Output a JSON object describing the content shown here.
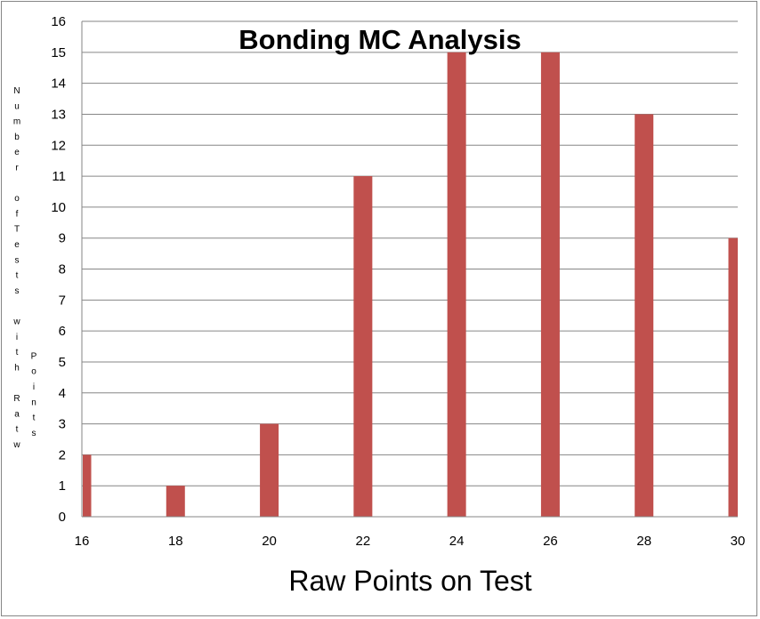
{
  "chart_data": {
    "type": "bar",
    "title": "Bonding MC Analysis",
    "xlabel": "Raw Points on Test",
    "ylabel_columns": [
      [
        "N",
        "u",
        "m",
        "b",
        "e",
        "r",
        "",
        "o",
        "f",
        "T",
        "e",
        "s",
        "t",
        "s",
        "",
        "w",
        "i",
        "t",
        "h",
        "",
        "R",
        "a",
        "t",
        "w"
      ],
      [
        "",
        "",
        "",
        "",
        "",
        "",
        "",
        "",
        "P",
        "o",
        "i",
        "n",
        "t",
        "s"
      ]
    ],
    "x": [
      16,
      18,
      20,
      22,
      24,
      26,
      28,
      30
    ],
    "values": [
      2,
      1,
      3,
      11,
      15,
      15,
      13,
      9
    ],
    "x_ticks": [
      "16",
      "18",
      "20",
      "22",
      "24",
      "26",
      "28",
      "30"
    ],
    "y_ticks": [
      "0",
      "1",
      "2",
      "3",
      "4",
      "5",
      "6",
      "7",
      "8",
      "9",
      "10",
      "11",
      "12",
      "13",
      "14",
      "15",
      "16"
    ],
    "xlim": [
      16,
      30
    ],
    "ylim": [
      0,
      16
    ],
    "grid": true,
    "legend": "none",
    "bar_color": "#C0504D",
    "grid_color": "#868686"
  }
}
